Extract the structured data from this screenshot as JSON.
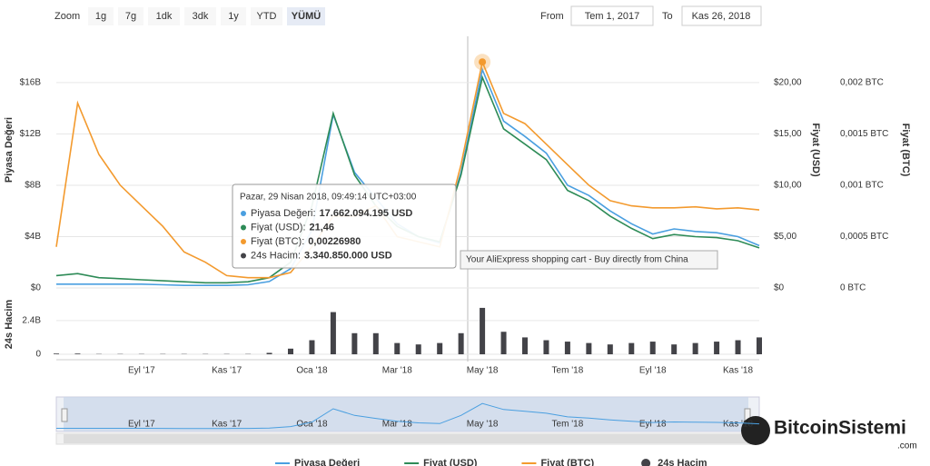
{
  "range_selector": {
    "zoom_label": "Zoom",
    "buttons": [
      "1g",
      "7g",
      "1dk",
      "3dk",
      "1y",
      "YTD",
      "YÜMÜ"
    ],
    "selected": 6,
    "from_label": "From",
    "from": "Tem 1, 2017",
    "to_label": "To",
    "to": "Kas 26, 2018"
  },
  "hover_tip": "Your AliExpress shopping cart - Buy directly from China",
  "watermark": {
    "name": "BitcoinSistemi",
    "suffix": ".com"
  },
  "chart_data": {
    "type": "line",
    "categories": [
      null,
      null,
      null,
      null,
      "Eyl '17",
      null,
      null,
      null,
      "Kas '17",
      null,
      null,
      null,
      "Oca '18",
      null,
      null,
      null,
      "Mar '18",
      null,
      null,
      null,
      "May '18",
      null,
      null,
      null,
      "Tem '18",
      null,
      null,
      null,
      "Eyl '18",
      null,
      null,
      null,
      "Kas '18",
      null
    ],
    "y_label": "Piyasa Değeri",
    "y2_label": "Fiyat (USD)",
    "y3_label": "Fiyat (BTC)",
    "ylim": [
      0,
      19600000000
    ],
    "yticks": [
      {
        "value": 0,
        "label": "$0"
      },
      {
        "value": 4000000000,
        "label": "$4B"
      },
      {
        "value": 8000000000,
        "label": "$8B"
      },
      {
        "value": 12000000000,
        "label": "$12B"
      },
      {
        "value": 16000000000,
        "label": "$16B"
      }
    ],
    "y2lim": [
      0,
      24.5
    ],
    "y2ticks": [
      {
        "value": 0,
        "label": "$0"
      },
      {
        "value": 5,
        "label": "$5,00"
      },
      {
        "value": 10,
        "label": "$10,00"
      },
      {
        "value": 15,
        "label": "$15,00"
      },
      {
        "value": 20,
        "label": "$20,00"
      }
    ],
    "y3lim": [
      0,
      0.00245
    ],
    "y3ticks": [
      {
        "value": 0,
        "label": "0 BTC"
      },
      {
        "value": 0.0005,
        "label": "0,0005 BTC"
      },
      {
        "value": 0.001,
        "label": "0,001 BTC"
      },
      {
        "value": 0.0015,
        "label": "0,0015 BTC"
      },
      {
        "value": 0.002,
        "label": "0,002 BTC"
      }
    ],
    "grid": true,
    "series": [
      {
        "name": "Piyasa Değeri",
        "color": "#4a9fe0",
        "axis": "y",
        "values": [
          300000000,
          300000000,
          300000000,
          300000000,
          300000000,
          250000000,
          200000000,
          200000000,
          200000000,
          250000000,
          500000000,
          1500000000,
          4500000000,
          13500000000,
          9000000000,
          7000000000,
          5000000000,
          4000000000,
          3500000000,
          9000000000,
          17000000000,
          13000000000,
          11800000000,
          10500000000,
          8000000000,
          7200000000,
          6000000000,
          5000000000,
          4200000000,
          4600000000,
          4400000000,
          4300000000,
          4000000000,
          3300000000
        ]
      },
      {
        "name": "Fiyat (USD)",
        "color": "#2e8b57",
        "axis": "y2",
        "values": [
          1.2,
          1.4,
          1.0,
          0.9,
          0.8,
          0.7,
          0.6,
          0.5,
          0.5,
          0.6,
          1.0,
          2.5,
          8.0,
          17.0,
          11.0,
          8.0,
          6.0,
          5.0,
          4.5,
          11.0,
          20.5,
          15.5,
          14.0,
          12.5,
          9.5,
          8.5,
          7.0,
          5.8,
          4.8,
          5.2,
          5.0,
          4.9,
          4.6,
          3.9
        ]
      },
      {
        "name": "Fiyat (BTC)",
        "color": "#f39a2e",
        "axis": "y3",
        "values": [
          0.0004,
          0.0018,
          0.0013,
          0.001,
          0.0008,
          0.0006,
          0.00035,
          0.00025,
          0.00012,
          0.0001,
          0.0001,
          0.00015,
          0.0004,
          0.0007,
          0.0007,
          0.0008,
          0.0005,
          0.00045,
          0.0004,
          0.0012,
          0.0022,
          0.0017,
          0.0016,
          0.0014,
          0.0012,
          0.001,
          0.00085,
          0.0008,
          0.00078,
          0.00078,
          0.00079,
          0.00077,
          0.00078,
          0.00076
        ]
      }
    ],
    "volume": {
      "name": "24s Hacim",
      "color": "#434348",
      "ylim": [
        0,
        4200000000
      ],
      "yticks": [
        0,
        {
          "value": 2400000000,
          "label": "2.4B"
        }
      ],
      "values": [
        50000000,
        50000000,
        20000000,
        20000000,
        20000000,
        20000000,
        20000000,
        20000000,
        20000000,
        20000000,
        100000000,
        400000000,
        1000000000,
        3000000000,
        1500000000,
        1500000000,
        800000000,
        700000000,
        800000000,
        1500000000,
        3300000000,
        1600000000,
        1200000000,
        1000000000,
        900000000,
        800000000,
        700000000,
        800000000,
        900000000,
        700000000,
        800000000,
        900000000,
        1000000000,
        1200000000
      ]
    },
    "tooltip": {
      "title": "Pazar, 29 Nisan 2018, 09:49:14 UTC+03:00",
      "rows": [
        {
          "label": "Piyasa Değeri:",
          "value": "17.662.094.195 USD"
        },
        {
          "label": "Fiyat (USD):",
          "value": "21,46"
        },
        {
          "label": "Fiyat (BTC):",
          "value": "0,00226980"
        },
        {
          "label": "24s Hacim:",
          "value": "3.340.850.000 USD"
        }
      ]
    }
  }
}
